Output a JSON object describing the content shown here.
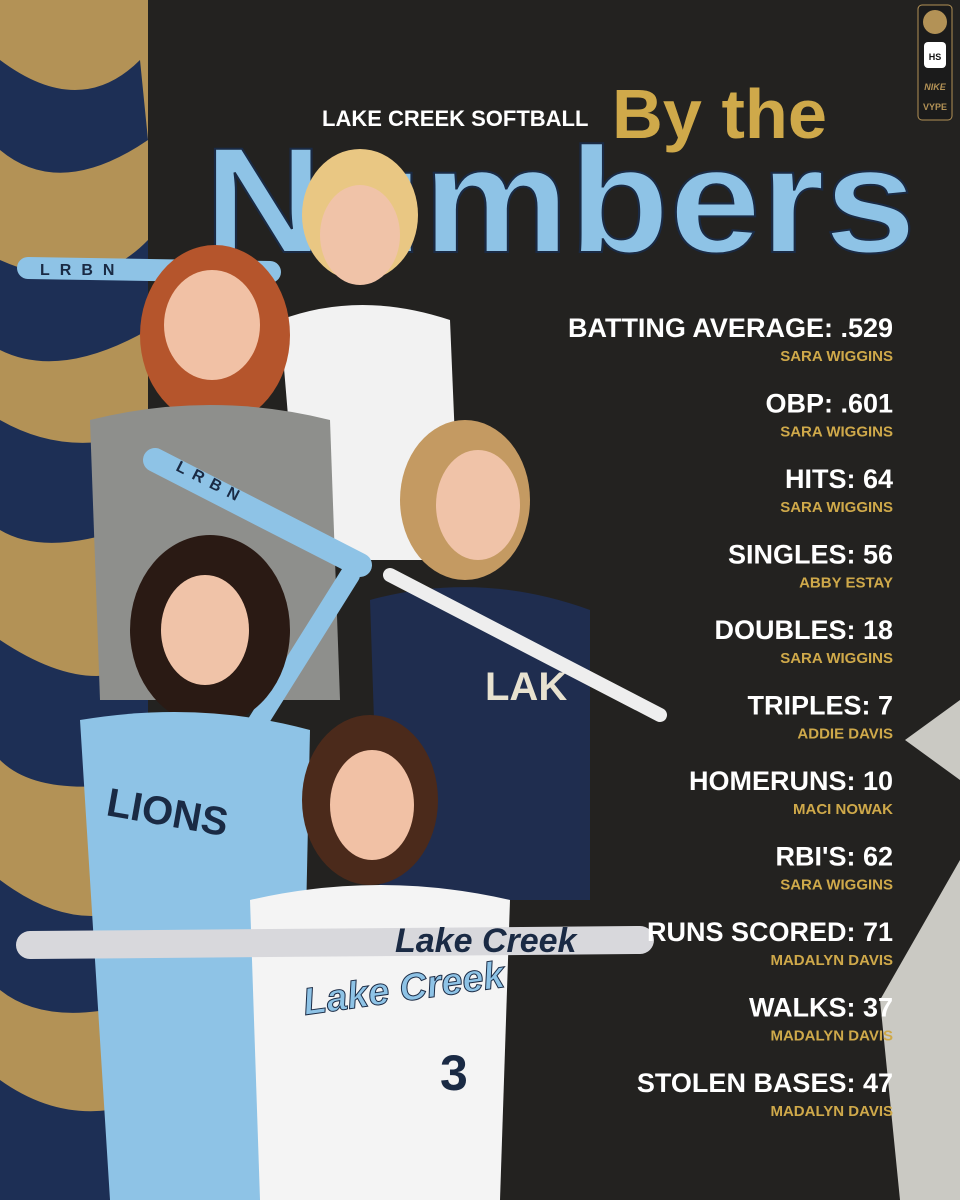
{
  "header": {
    "kicker": "LAKE CREEK SOFTBALL",
    "title_top": "By the",
    "title_main": "Numbers"
  },
  "badges": {
    "school": "HS",
    "brand": "NIKE",
    "publisher": "VYPE"
  },
  "bats": {
    "top": "LRBN",
    "middle": "LRBN",
    "crystal": "Lake Creek"
  },
  "jerseys": {
    "front": "Lake Creek",
    "number": "3",
    "left": "LIONS",
    "back": "LAK"
  },
  "stats": [
    {
      "stat": "BATTING AVERAGE: .529",
      "player": "SARA WIGGINS"
    },
    {
      "stat": "OBP: .601",
      "player": "SARA WIGGINS"
    },
    {
      "stat": "HITS: 64",
      "player": "SARA WIGGINS"
    },
    {
      "stat": "SINGLES: 56",
      "player": "ABBY ESTAY"
    },
    {
      "stat": "DOUBLES: 18",
      "player": "SARA WIGGINS"
    },
    {
      "stat": "TRIPLES: 7",
      "player": "ADDIE DAVIS"
    },
    {
      "stat": "HOMERUNS: 10",
      "player": "MACI NOWAK"
    },
    {
      "stat": "RBI'S: 62",
      "player": "SARA WIGGINS"
    },
    {
      "stat": "RUNS SCORED: 71",
      "player": "MADALYN DAVIS"
    },
    {
      "stat": "WALKS: 37",
      "player": "MADALYN DAVIS"
    },
    {
      "stat": "STOLEN BASES: 47",
      "player": "MADALYN DAVIS"
    }
  ]
}
